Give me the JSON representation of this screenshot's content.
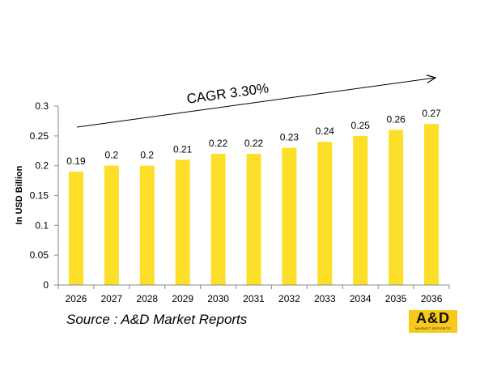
{
  "chart_data": {
    "type": "bar",
    "categories": [
      "2026",
      "2027",
      "2028",
      "2029",
      "2030",
      "2031",
      "2032",
      "2033",
      "2034",
      "2035",
      "2036"
    ],
    "values": [
      0.19,
      0.2,
      0.2,
      0.21,
      0.22,
      0.22,
      0.23,
      0.24,
      0.25,
      0.26,
      0.27
    ],
    "data_labels": [
      "0.19",
      "0.2",
      "0.2",
      "0.21",
      "0.22",
      "0.22",
      "0.23",
      "0.24",
      "0.25",
      "0.26",
      "0.27"
    ],
    "ylabel": "In USD Billion",
    "ylim": [
      0,
      0.3
    ],
    "yticks": [
      "0",
      "0.05",
      "0.1",
      "0.15",
      "0.2",
      "0.25",
      "0.3"
    ],
    "bar_color": "#fddf2a",
    "grid": false,
    "annotation": "CAGR 3.30%"
  },
  "source": "Source : A&D Market Reports",
  "logo": {
    "text": "A&D",
    "subtext": "MARKET REPORTS",
    "color": "#f7c81e"
  }
}
